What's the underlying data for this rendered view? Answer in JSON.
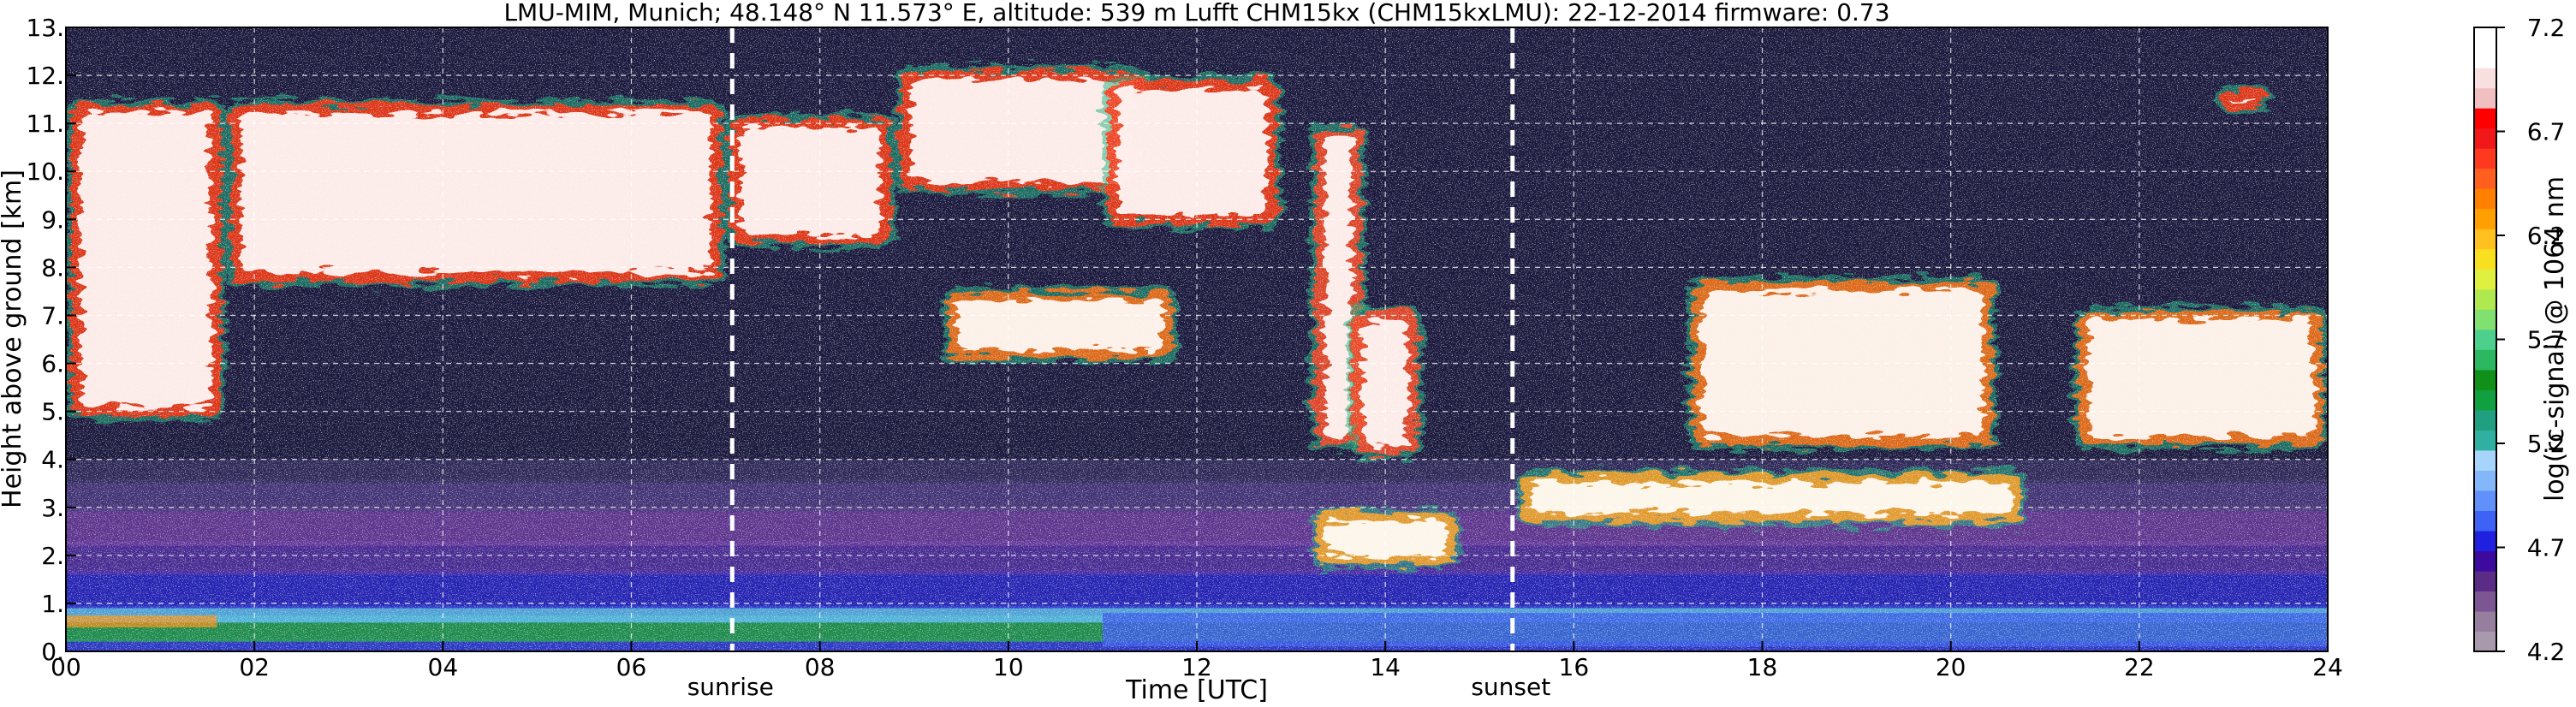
{
  "chart_data": {
    "type": "heatmap",
    "title": "LMU-MIM, Munich; 48.148° N 11.573° E, altitude: 539 m    Lufft CHM15kx (CHM15kxLMU): 22-12-2014    firmware: 0.73",
    "xlabel": "Time [UTC]",
    "ylabel": "Height above ground [km]",
    "xlim": [
      0,
      24
    ],
    "ylim": [
      0,
      13
    ],
    "x_ticks": [
      0,
      2,
      4,
      6,
      8,
      10,
      12,
      14,
      16,
      18,
      20,
      22,
      24
    ],
    "x_tick_labels": [
      "00",
      "02",
      "04",
      "06",
      "08",
      "10",
      "12",
      "14",
      "16",
      "18",
      "20",
      "22",
      "24"
    ],
    "y_ticks": [
      0,
      1,
      2,
      3,
      4,
      5,
      6,
      7,
      8,
      9,
      10,
      11,
      12,
      13
    ],
    "y_tick_labels": [
      "0.",
      "1.",
      "2.",
      "3.",
      "4.",
      "5.",
      "6.",
      "7.",
      "8.",
      "9.",
      "10.",
      "11.",
      "12.",
      "13."
    ],
    "grid": true,
    "annotations": [
      {
        "text": "sunrise",
        "x": 7.07
      },
      {
        "text": "sunset",
        "x": 15.35
      }
    ],
    "colorbar": {
      "label": "log(rc-signal) @ 1064 nm",
      "range": [
        4.2,
        7.2
      ],
      "tick_values": [
        4.2,
        4.7,
        5.2,
        5.7,
        6.2,
        6.7,
        7.2
      ],
      "tick_labels": [
        "4.2",
        "4.7",
        "5.2",
        "5.7",
        "6.2",
        "6.7",
        "7.2"
      ],
      "colors": [
        "#a89aac",
        "#967e9e",
        "#7c5692",
        "#5a2c86",
        "#3c0a9e",
        "#2020e0",
        "#3e62f6",
        "#6090fa",
        "#84b6fa",
        "#a6d4fa",
        "#30b0a0",
        "#20a080",
        "#10a040",
        "#109018",
        "#2cb860",
        "#4cd08c",
        "#80e070",
        "#b0e850",
        "#e0f040",
        "#f8e020",
        "#ffc020",
        "#ffa000",
        "#ff8000",
        "#ff6020",
        "#ff3820",
        "#f01818",
        "#ff0000",
        "#f0c0c0",
        "#f8e0e0",
        "#ffffff",
        "#ffffff"
      ]
    },
    "background_color": "#1c1a3e",
    "features": [
      {
        "kind": "cirrus",
        "t0": 0.0,
        "t1": 1.7,
        "h0": 4.8,
        "h1": 11.5
      },
      {
        "kind": "cirrus",
        "t0": 1.7,
        "t1": 7.0,
        "h0": 7.6,
        "h1": 11.5
      },
      {
        "kind": "cirrus",
        "t0": 7.0,
        "t1": 8.8,
        "h0": 8.4,
        "h1": 11.2
      },
      {
        "kind": "cirrus",
        "t0": 8.8,
        "t1": 11.5,
        "h0": 9.5,
        "h1": 12.2
      },
      {
        "kind": "cirrus",
        "t0": 11.0,
        "t1": 12.9,
        "h0": 8.8,
        "h1": 12.0
      },
      {
        "kind": "fallstreak",
        "t0": 13.2,
        "t1": 13.8,
        "h0": 4.2,
        "h1": 11.0
      },
      {
        "kind": "fallstreak",
        "t0": 13.6,
        "t1": 14.4,
        "h0": 4.0,
        "h1": 7.2
      },
      {
        "kind": "midlevel",
        "t0": 9.3,
        "t1": 11.8,
        "h0": 6.0,
        "h1": 7.6
      },
      {
        "kind": "midlevel",
        "t0": 17.2,
        "t1": 20.5,
        "h0": 4.2,
        "h1": 7.8
      },
      {
        "kind": "midlevel",
        "t0": 21.3,
        "t1": 24.0,
        "h0": 4.2,
        "h1": 7.2
      },
      {
        "kind": "thin-layer",
        "t0": 15.4,
        "t1": 20.8,
        "h0": 2.6,
        "h1": 3.8
      },
      {
        "kind": "thin-layer",
        "t0": 13.2,
        "t1": 14.8,
        "h0": 1.7,
        "h1": 3.0
      },
      {
        "kind": "cirrus",
        "t0": 22.8,
        "t1": 23.4,
        "h0": 11.2,
        "h1": 11.8
      }
    ]
  }
}
